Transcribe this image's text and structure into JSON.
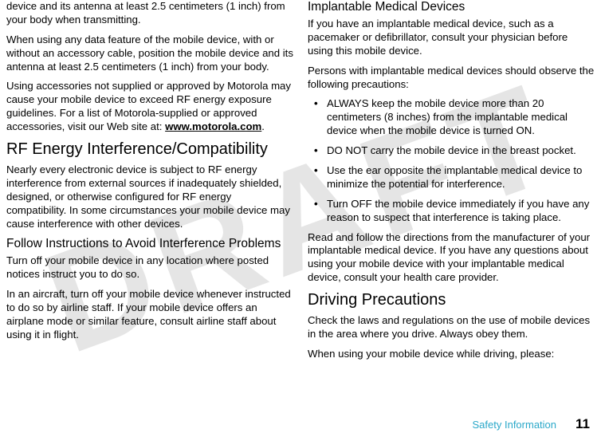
{
  "watermark": "DRAFT",
  "left": {
    "p1": "device and its antenna at least 2.5 centimeters (1 inch) from your body when transmitting.",
    "p2": "When using any data feature of the mobile device, with or without an accessory cable, position the mobile device and its antenna at least 2.5 centimeters (1 inch) from your body.",
    "p3a": "Using accessories not supplied or approved by Motorola may cause your mobile device to exceed RF energy exposure guidelines. For a list of Motorola-supplied or approved accessories, visit our Web site at: ",
    "p3link": "www.motorola.com",
    "p3b": ".",
    "h2": "RF Energy Interference/Compatibility",
    "p4": "Nearly every electronic device is subject to RF energy interference from external sources if inadequately shielded, designed, or otherwise configured for RF energy compatibility. In some circumstances your mobile device may cause interference with other devices.",
    "h3": "Follow Instructions to Avoid Interference Problems",
    "p5": "Turn off your mobile device in any location where posted notices instruct you to do so.",
    "p6": "In an aircraft, turn off your mobile device whenever instructed to do so by airline staff. If your mobile device offers an airplane mode or similar feature, consult airline staff about using it in flight."
  },
  "right": {
    "h3a": "Implantable Medical Devices",
    "p1": "If you have an implantable medical device, such as a pacemaker or defibrillator, consult your physician before using this mobile device.",
    "p2": "Persons with implantable medical devices should observe the following precautions:",
    "li1": "ALWAYS keep the mobile device more than 20 centimeters (8 inches) from the implantable medical device when the mobile device is turned ON.",
    "li2": "DO NOT carry the mobile device in the breast pocket.",
    "li3": "Use the ear opposite the implantable medical device to minimize the potential for interference.",
    "li4": "Turn OFF the mobile device immediately if you have any reason to suspect that interference is taking place.",
    "p3": "Read and follow the directions from the manufacturer of your implantable medical device. If you have any questions about using your mobile device with your implantable medical device, consult your health care provider.",
    "h2": "Driving Precautions",
    "p4": "Check the laws and regulations on the use of mobile devices in the area where you drive. Always obey them.",
    "p5": "When using your mobile device while driving, please:"
  },
  "footer": {
    "label": "Safety Information",
    "page": "11"
  }
}
